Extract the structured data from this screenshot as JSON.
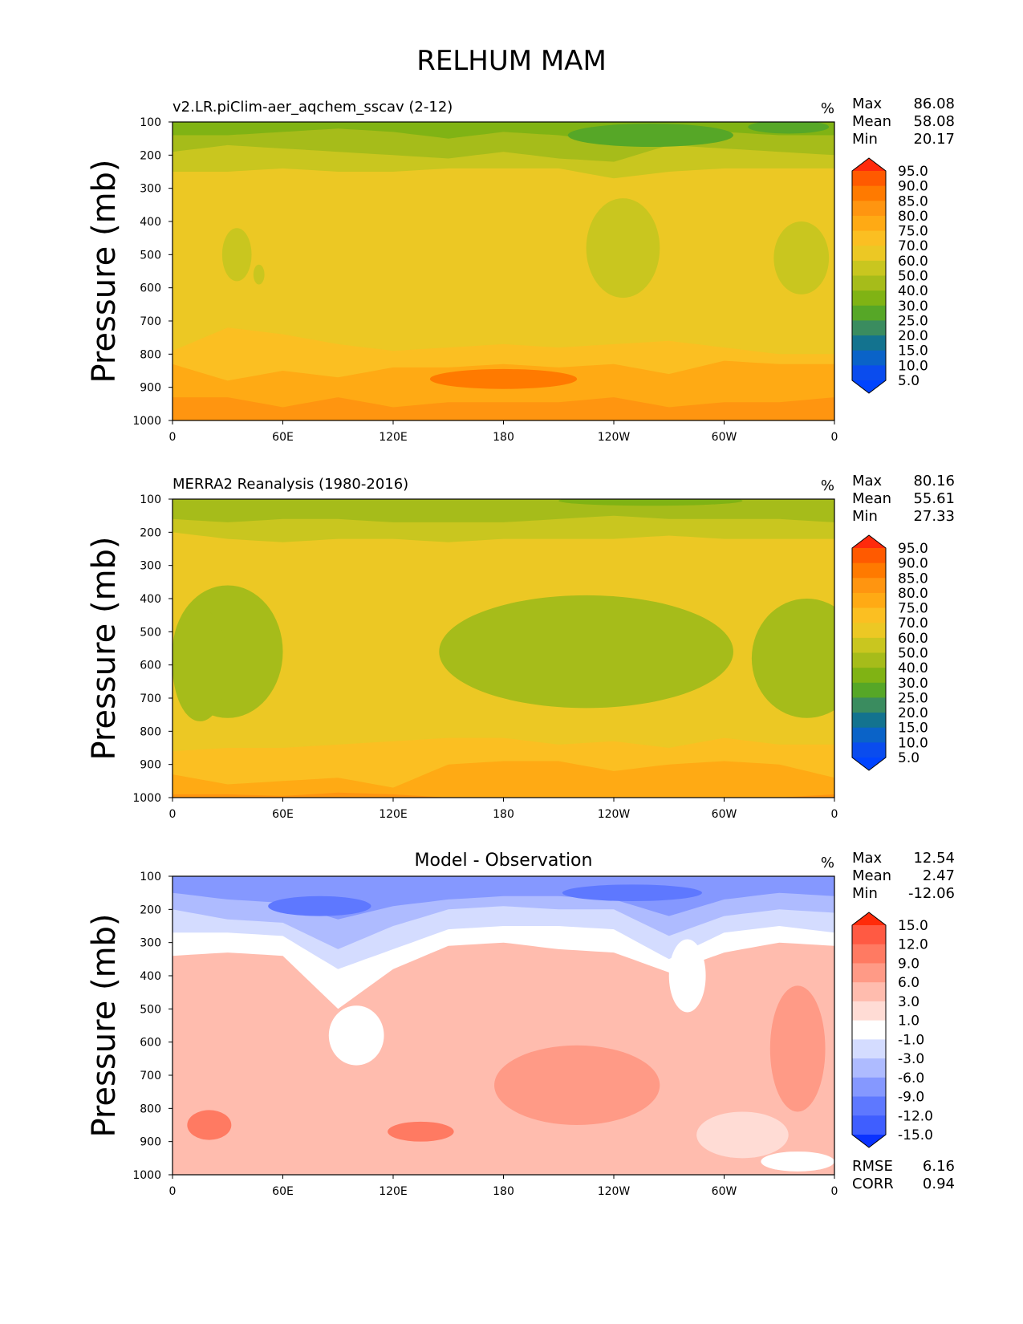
{
  "title": "RELHUM MAM",
  "panels": [
    {
      "id": "model",
      "title_left": "v2.LR.piClim-aer_aqchem_sscav (2-12)",
      "title_center": "",
      "units": "%",
      "stats": [
        {
          "label": "Max",
          "value": "86.08"
        },
        {
          "label": "Mean",
          "value": "58.08"
        },
        {
          "label": "Min",
          "value": "20.17"
        }
      ],
      "footer_stats": []
    },
    {
      "id": "obs",
      "title_left": "MERRA2 Reanalysis (1980-2016)",
      "title_center": "",
      "units": "%",
      "stats": [
        {
          "label": "Max",
          "value": "80.16"
        },
        {
          "label": "Mean",
          "value": "55.61"
        },
        {
          "label": "Min",
          "value": "27.33"
        }
      ],
      "footer_stats": []
    },
    {
      "id": "diff",
      "title_left": "",
      "title_center": "Model - Observation",
      "units": "%",
      "stats": [
        {
          "label": "Max",
          "value": "12.54"
        },
        {
          "label": "Mean",
          "value": "2.47"
        },
        {
          "label": "Min",
          "value": "-12.06"
        }
      ],
      "footer_stats": [
        {
          "label": "RMSE",
          "value": "6.16"
        },
        {
          "label": "CORR",
          "value": "0.94"
        }
      ]
    }
  ],
  "chart_data": [
    {
      "type": "heatmap",
      "title": "v2.LR.piClim-aer_aqchem_sscav (2-12)",
      "units": "%",
      "xlabel": "",
      "ylabel": "Pressure (mb)",
      "x_ticks": [
        "0",
        "60E",
        "120E",
        "180",
        "120W",
        "60W",
        "0"
      ],
      "y_ticks": [
        "100",
        "200",
        "300",
        "400",
        "500",
        "600",
        "700",
        "800",
        "900",
        "1000"
      ],
      "xlim": [
        0,
        360
      ],
      "ylim": [
        1000,
        100
      ],
      "colorbar_levels": [
        "95.0",
        "90.0",
        "85.0",
        "80.0",
        "75.0",
        "70.0",
        "60.0",
        "50.0",
        "40.0",
        "30.0",
        "25.0",
        "20.0",
        "15.0",
        "10.0",
        "5.0"
      ],
      "colorbar_colors": [
        "#ff2a0c",
        "#ff5a00",
        "#ff7a00",
        "#ff9510",
        "#ffaa14",
        "#fbbf22",
        "#ecc824",
        "#c9c61f",
        "#a6bc1a",
        "#80b314",
        "#56a727",
        "#3a8c5f",
        "#13738f",
        "#0a63c8",
        "#0a4cee",
        "#0044ff"
      ],
      "stats": {
        "max": 86.08,
        "mean": 58.08,
        "min": 20.17
      },
      "band_boundaries_x": [
        0,
        30,
        60,
        90,
        120,
        150,
        180,
        210,
        240,
        270,
        300,
        330,
        360
      ],
      "band_boundaries": [
        [
          930,
          930,
          960,
          930,
          960,
          945,
          945,
          945,
          930,
          960,
          945,
          945,
          930
        ],
        [
          830,
          880,
          850,
          870,
          840,
          840,
          830,
          840,
          830,
          860,
          820,
          830,
          830
        ],
        [
          790,
          720,
          740,
          770,
          790,
          780,
          770,
          780,
          770,
          760,
          780,
          800,
          800
        ],
        [
          250,
          250,
          240,
          250,
          250,
          240,
          240,
          240,
          270,
          250,
          240,
          240,
          240
        ],
        [
          190,
          170,
          180,
          190,
          200,
          210,
          190,
          210,
          220,
          170,
          180,
          190,
          200
        ],
        [
          140,
          140,
          130,
          120,
          130,
          150,
          130,
          140,
          160,
          140,
          130,
          140,
          140
        ]
      ],
      "band_values": [
        80,
        75,
        70,
        60,
        50,
        40,
        30
      ],
      "patches": [
        {
          "lon": 35,
          "p": 500,
          "rlon": 8,
          "rp": 80,
          "value": 50
        },
        {
          "lon": 47,
          "p": 560,
          "rlon": 3,
          "rp": 30,
          "value": 50
        },
        {
          "lon": 245,
          "p": 480,
          "rlon": 20,
          "rp": 150,
          "value": 50
        },
        {
          "lon": 342,
          "p": 510,
          "rlon": 15,
          "rp": 110,
          "value": 50
        },
        {
          "lon": 180,
          "p": 875,
          "rlon": 40,
          "rp": 30,
          "value": 85
        },
        {
          "lon": 260,
          "p": 140,
          "rlon": 45,
          "rp": 35,
          "value": 25
        },
        {
          "lon": 335,
          "p": 115,
          "rlon": 22,
          "rp": 20,
          "value": 25
        }
      ]
    },
    {
      "type": "heatmap",
      "title": "MERRA2 Reanalysis (1980-2016)",
      "units": "%",
      "xlabel": "",
      "ylabel": "Pressure (mb)",
      "x_ticks": [
        "0",
        "60E",
        "120E",
        "180",
        "120W",
        "60W",
        "0"
      ],
      "y_ticks": [
        "100",
        "200",
        "300",
        "400",
        "500",
        "600",
        "700",
        "800",
        "900",
        "1000"
      ],
      "xlim": [
        0,
        360
      ],
      "ylim": [
        1000,
        100
      ],
      "colorbar_levels": [
        "95.0",
        "90.0",
        "85.0",
        "80.0",
        "75.0",
        "70.0",
        "60.0",
        "50.0",
        "40.0",
        "30.0",
        "25.0",
        "20.0",
        "15.0",
        "10.0",
        "5.0"
      ],
      "colorbar_colors": [
        "#ff2a0c",
        "#ff5a00",
        "#ff7a00",
        "#ff9510",
        "#ffaa14",
        "#fbbf22",
        "#ecc824",
        "#c9c61f",
        "#a6bc1a",
        "#80b314",
        "#56a727",
        "#3a8c5f",
        "#13738f",
        "#0a63c8",
        "#0a4cee",
        "#0044ff"
      ],
      "stats": {
        "max": 80.16,
        "mean": 55.61,
        "min": 27.33
      },
      "band_boundaries_x": [
        0,
        30,
        60,
        90,
        120,
        150,
        180,
        210,
        240,
        270,
        300,
        330,
        360
      ],
      "band_boundaries": [
        [
          990,
          990,
          995,
          985,
          990,
          1000,
          1000,
          1000,
          1000,
          1000,
          1000,
          1000,
          990
        ],
        [
          930,
          960,
          950,
          940,
          970,
          900,
          890,
          890,
          920,
          900,
          890,
          900,
          940
        ],
        [
          860,
          850,
          850,
          840,
          830,
          820,
          820,
          840,
          830,
          850,
          820,
          840,
          840
        ],
        [
          200,
          220,
          230,
          220,
          220,
          230,
          220,
          220,
          220,
          210,
          220,
          220,
          220
        ],
        [
          160,
          170,
          160,
          160,
          170,
          170,
          170,
          160,
          150,
          160,
          160,
          160,
          170
        ]
      ],
      "band_values": [
        80,
        75,
        70,
        60,
        50,
        40
      ],
      "patches": [
        {
          "lon": 30,
          "p": 560,
          "rlon": 30,
          "rp": 200,
          "value": 40
        },
        {
          "lon": 15,
          "p": 600,
          "rlon": 15,
          "rp": 170,
          "value": 40
        },
        {
          "lon": 225,
          "p": 560,
          "rlon": 80,
          "rp": 170,
          "value": 40
        },
        {
          "lon": 345,
          "p": 580,
          "rlon": 30,
          "rp": 180,
          "value": 40
        },
        {
          "lon": 260,
          "p": 105,
          "rlon": 50,
          "rp": 15,
          "value": 30
        }
      ]
    },
    {
      "type": "heatmap",
      "title": "Model - Observation",
      "units": "%",
      "xlabel": "",
      "ylabel": "Pressure (mb)",
      "x_ticks": [
        "0",
        "60E",
        "120E",
        "180",
        "120W",
        "60W",
        "0"
      ],
      "y_ticks": [
        "100",
        "200",
        "300",
        "400",
        "500",
        "600",
        "700",
        "800",
        "900",
        "1000"
      ],
      "xlim": [
        0,
        360
      ],
      "ylim": [
        1000,
        100
      ],
      "colorbar_levels": [
        "15.0",
        "12.0",
        "9.0",
        "6.0",
        "3.0",
        "1.0",
        "-1.0",
        "-3.0",
        "-6.0",
        "-9.0",
        "-12.0",
        "-15.0"
      ],
      "colorbar_colors": [
        "#ff2b0a",
        "#ff5a43",
        "#ff7a62",
        "#ff9a86",
        "#ffbcae",
        "#ffdcd5",
        "#ffffff",
        "#d4dcff",
        "#aebbff",
        "#8598ff",
        "#5e78ff",
        "#3f5eff",
        "#0a32ff"
      ],
      "stats": {
        "max": 12.54,
        "mean": 2.47,
        "min": -12.06,
        "rmse": 6.16,
        "corr": 0.94
      },
      "band_boundaries_x": [
        0,
        30,
        60,
        90,
        120,
        150,
        180,
        210,
        240,
        270,
        300,
        330,
        360
      ],
      "band_boundaries": [
        [
          340,
          330,
          340,
          500,
          380,
          310,
          300,
          320,
          330,
          390,
          330,
          300,
          310
        ],
        [
          270,
          270,
          280,
          380,
          320,
          260,
          250,
          250,
          260,
          350,
          270,
          250,
          270
        ],
        [
          200,
          230,
          240,
          320,
          250,
          200,
          190,
          200,
          200,
          280,
          220,
          200,
          210
        ],
        [
          150,
          170,
          180,
          230,
          190,
          170,
          160,
          160,
          170,
          220,
          170,
          150,
          160
        ]
      ],
      "band_values": [
        4,
        0,
        -2,
        -5,
        -8
      ],
      "patches": [
        {
          "lon": 20,
          "p": 850,
          "rlon": 12,
          "rp": 45,
          "value": 10
        },
        {
          "lon": 135,
          "p": 870,
          "rlon": 18,
          "rp": 30,
          "value": 10
        },
        {
          "lon": 220,
          "p": 730,
          "rlon": 45,
          "rp": 120,
          "value": 8
        },
        {
          "lon": 100,
          "p": 580,
          "rlon": 15,
          "rp": 90,
          "value": 0
        },
        {
          "lon": 280,
          "p": 400,
          "rlon": 10,
          "rp": 110,
          "value": 0
        },
        {
          "lon": 340,
          "p": 620,
          "rlon": 15,
          "rp": 190,
          "value": 8
        },
        {
          "lon": 310,
          "p": 880,
          "rlon": 25,
          "rp": 70,
          "value": 1
        },
        {
          "lon": 340,
          "p": 960,
          "rlon": 20,
          "rp": 30,
          "value": 0
        },
        {
          "lon": 80,
          "p": 190,
          "rlon": 28,
          "rp": 30,
          "value": -11
        },
        {
          "lon": 250,
          "p": 150,
          "rlon": 38,
          "rp": 25,
          "value": -11
        }
      ]
    }
  ]
}
